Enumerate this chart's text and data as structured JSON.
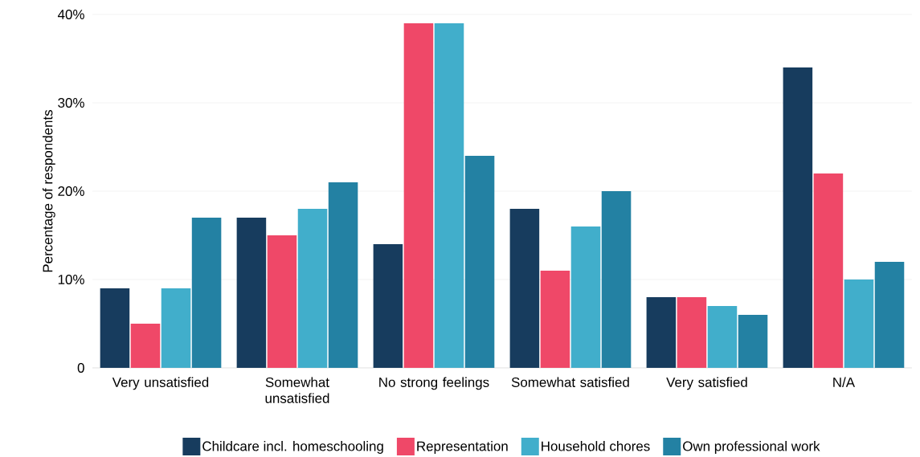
{
  "chart_data": {
    "type": "bar",
    "ylabel": "Percentage of respondents",
    "categories": [
      "Very unsatisfied",
      "Somewhat unsatisfied",
      "No strong feelings",
      "Somewhat satisfied",
      "Very satisfied",
      "N/A"
    ],
    "series": [
      {
        "name": "Childcare incl. homeschooling",
        "color": "#173c5e",
        "values": [
          9,
          17,
          14,
          18,
          8,
          34
        ]
      },
      {
        "name": "Representation",
        "color": "#ef4868",
        "values": [
          5,
          15,
          39,
          11,
          8,
          22
        ]
      },
      {
        "name": "Household chores",
        "color": "#41aecb",
        "values": [
          9,
          18,
          39,
          16,
          7,
          10
        ]
      },
      {
        "name": "Own professional work",
        "color": "#2381a3",
        "values": [
          17,
          21,
          24,
          20,
          6,
          12
        ]
      }
    ],
    "ylim": [
      0,
      40
    ],
    "yticks": [
      {
        "value": 0,
        "label": "0"
      },
      {
        "value": 10,
        "label": "10%"
      },
      {
        "value": 20,
        "label": "20%"
      },
      {
        "value": 30,
        "label": "30%"
      },
      {
        "value": 40,
        "label": "40%"
      }
    ],
    "grid": "y",
    "legend": "bottom"
  }
}
